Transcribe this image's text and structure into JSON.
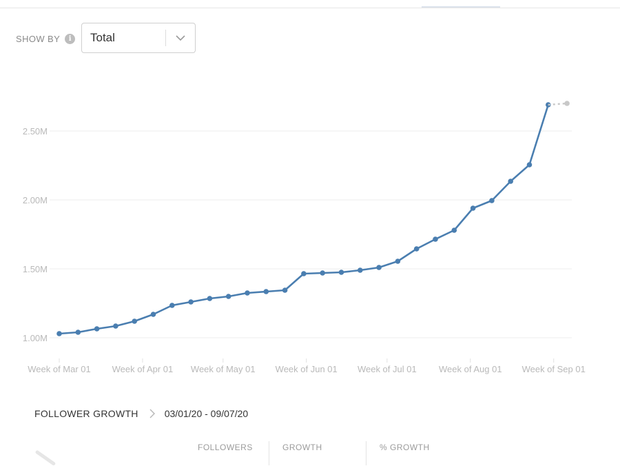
{
  "show_by": {
    "label": "SHOW BY",
    "selected": "Total"
  },
  "growth": {
    "title": "FOLLOWER GROWTH",
    "date_range": "03/01/20 - 09/07/20",
    "columns": [
      "FOLLOWERS",
      "GROWTH",
      "% GROWTH"
    ]
  },
  "colors": {
    "line": "#4a7eb0",
    "projection": "#c8c8c8",
    "grid": "#ececec",
    "tick_text": "#b9b9b9"
  },
  "chart_data": {
    "type": "line",
    "title": "",
    "xlabel": "",
    "ylabel": "",
    "ylim": [
      1000000,
      2800000
    ],
    "yticks": [
      {
        "value": 1000000,
        "label": "1.00M"
      },
      {
        "value": 1500000,
        "label": "1.50M"
      },
      {
        "value": 2000000,
        "label": "2.00M"
      },
      {
        "value": 2500000,
        "label": "2.50M"
      }
    ],
    "xticks": [
      {
        "index": 0,
        "label": "Week of Mar 01"
      },
      {
        "index": 4.43,
        "label": "Week of Apr 01"
      },
      {
        "index": 8.71,
        "label": "Week of May 01"
      },
      {
        "index": 13.14,
        "label": "Week of Jun 01"
      },
      {
        "index": 17.43,
        "label": "Week of Jul 01"
      },
      {
        "index": 21.86,
        "label": "Week of Aug 01"
      },
      {
        "index": 26.29,
        "label": "Week of Sep 01"
      }
    ],
    "grid": true,
    "series": [
      {
        "values": [
          1030000,
          1040000,
          1065000,
          1085000,
          1120000,
          1170000,
          1235000,
          1260000,
          1285000,
          1300000,
          1325000,
          1335000,
          1345000,
          1465000,
          1470000,
          1475000,
          1490000,
          1510000,
          1555000,
          1645000,
          1715000,
          1780000,
          1940000,
          1995000,
          2135000,
          2255000,
          2690000
        ]
      },
      {
        "style": "projection",
        "start_index": 26,
        "values": [
          2690000,
          2700000
        ]
      }
    ]
  }
}
